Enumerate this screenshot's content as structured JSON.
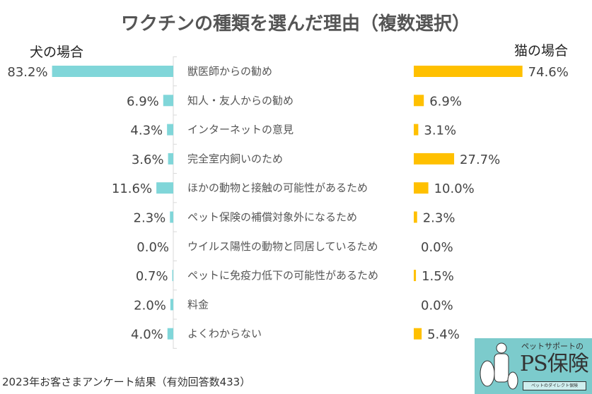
{
  "chart_data": {
    "type": "bar",
    "title": "ワクチンの種類を選んだ理由（複数選択）",
    "categories": [
      "獣医師からの勧め",
      "知人・友人からの勧め",
      "インターネットの意見",
      "完全室内飼いのため",
      "ほかの動物と接触の可能性があるため",
      "ペット保険の補償対象外になるため",
      "ウイルス陽性の動物と同居しているため",
      "ペットに免疫力低下の可能性があるため",
      "料金",
      "よくわからない"
    ],
    "series": [
      {
        "name": "犬の場合",
        "color": "#80d6d9",
        "direction": "left",
        "values": [
          83.2,
          6.9,
          4.3,
          3.6,
          11.6,
          2.3,
          0.0,
          0.7,
          2.0,
          4.0
        ]
      },
      {
        "name": "猫の場合",
        "color": "#ffc000",
        "direction": "right",
        "values": [
          74.6,
          6.9,
          3.1,
          27.7,
          10.0,
          2.3,
          0.0,
          1.5,
          0.0,
          5.4
        ]
      }
    ],
    "value_format": "%",
    "xlim": [
      0,
      85
    ]
  },
  "footer": "2023年お客さまアンケート結果（有効回答数433）",
  "logo": {
    "line1": "ペットサポートの",
    "line2": "PS保険",
    "line3": "ペットのダイレクト保険"
  }
}
